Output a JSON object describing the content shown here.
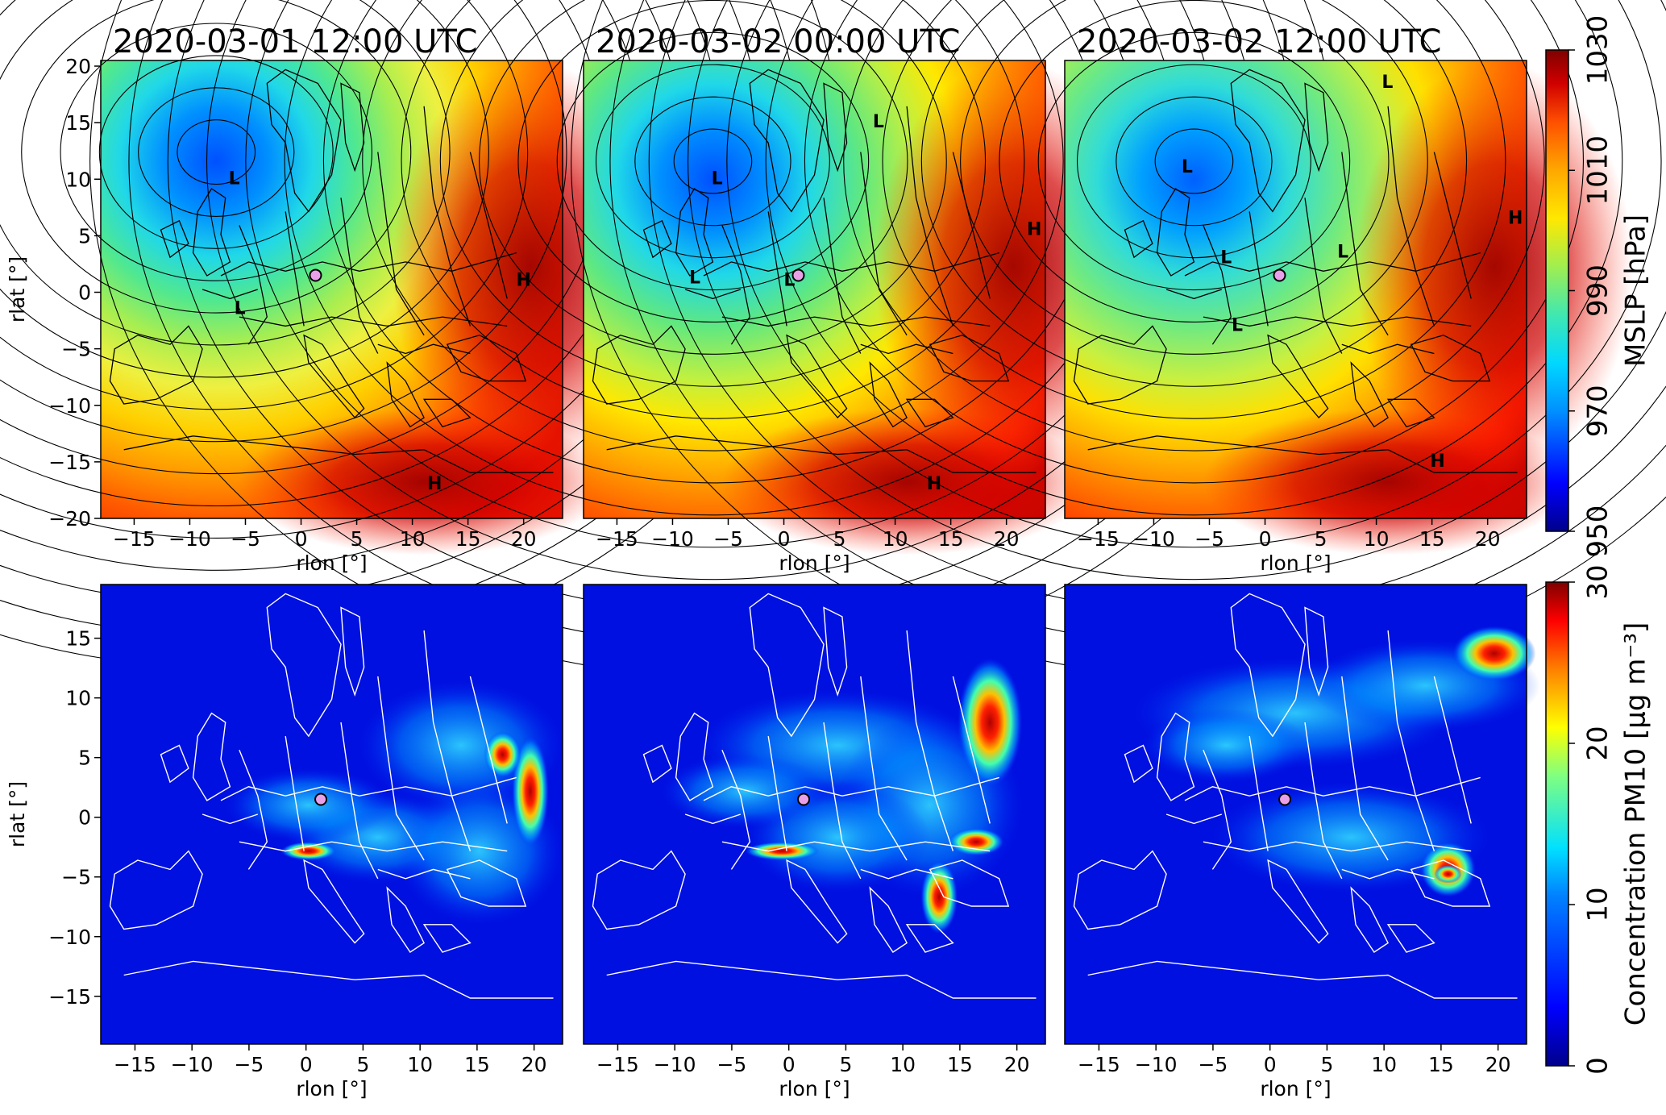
{
  "timestamps": [
    "2020-03-01 12:00 UTC",
    "2020-03-02 00:00 UTC",
    "2020-03-02 12:00 UTC"
  ],
  "mslp_panel": {
    "xlabel": "rlon [°]",
    "ylabel": "rlat [°]",
    "xticks": [
      -15,
      -10,
      -5,
      0,
      5,
      10,
      15,
      20
    ],
    "yticks": [
      20,
      15,
      10,
      5,
      0,
      -5,
      -10,
      -15,
      -20
    ],
    "xlim": [
      -18,
      23.5
    ],
    "ylim": [
      -20,
      20.5
    ]
  },
  "pm10_panel": {
    "xlabel": "rlon [°]",
    "ylabel": "rlat [°]",
    "xticks": [
      -15,
      -10,
      -5,
      0,
      5,
      10,
      15,
      20
    ],
    "yticks": [
      15,
      10,
      5,
      0,
      -5,
      -10,
      -15
    ],
    "xlim": [
      -18,
      22.5
    ],
    "ylim": [
      -19,
      19.5
    ]
  },
  "mslp_colorbar": {
    "label": "MSLP [hPa]",
    "ticks": [
      950,
      970,
      990,
      1010,
      1030
    ],
    "colors": [
      "#00008b",
      "#0000ff",
      "#0080ff",
      "#00d8ff",
      "#40e8c0",
      "#90ee60",
      "#e0f040",
      "#ffe800",
      "#ffb000",
      "#ff7000",
      "#ff3000",
      "#d00000",
      "#800000"
    ]
  },
  "pm10_colorbar": {
    "label": "Concentration PM10 [μg m⁻³]",
    "ticks": [
      0,
      10,
      20,
      30
    ],
    "colors": [
      "#00008b",
      "#0000ff",
      "#0080ff",
      "#00e0ff",
      "#80ff80",
      "#ffff00",
      "#ff8000",
      "#ff0000",
      "#800000"
    ]
  },
  "pressure_centers": [
    [
      {
        "label": "L",
        "rlon": -6,
        "rlat": 10
      },
      {
        "label": "L",
        "rlon": -5.5,
        "rlat": -1.5
      },
      {
        "label": "H",
        "rlon": 20,
        "rlat": 1
      },
      {
        "label": "H",
        "rlon": 12,
        "rlat": -17
      }
    ],
    [
      {
        "label": "L",
        "rlon": -6,
        "rlat": 10
      },
      {
        "label": "L",
        "rlon": -8,
        "rlat": 1.2
      },
      {
        "label": "L",
        "rlon": 0.5,
        "rlat": 1
      },
      {
        "label": "L",
        "rlon": 8.5,
        "rlat": 15
      },
      {
        "label": "H",
        "rlon": 22.5,
        "rlat": 5.5
      },
      {
        "label": "H",
        "rlon": 13.5,
        "rlat": -17
      }
    ],
    [
      {
        "label": "L",
        "rlon": -7,
        "rlat": 11
      },
      {
        "label": "L",
        "rlon": -3.5,
        "rlat": 3
      },
      {
        "label": "L",
        "rlon": -2.5,
        "rlat": -3
      },
      {
        "label": "L",
        "rlon": 7,
        "rlat": 3.5
      },
      {
        "label": "L",
        "rlon": 11,
        "rlat": 18.5
      },
      {
        "label": "H",
        "rlon": 22.5,
        "rlat": 6.5
      },
      {
        "label": "H",
        "rlon": 15.5,
        "rlat": -15
      }
    ]
  ],
  "site_marker": {
    "rlon": 1.3,
    "rlat": 1.5,
    "color": "#e8a0e8"
  },
  "colors": {
    "contour": "#000000",
    "border_mslp": "#000000",
    "border_pm10": "#ffffff"
  }
}
